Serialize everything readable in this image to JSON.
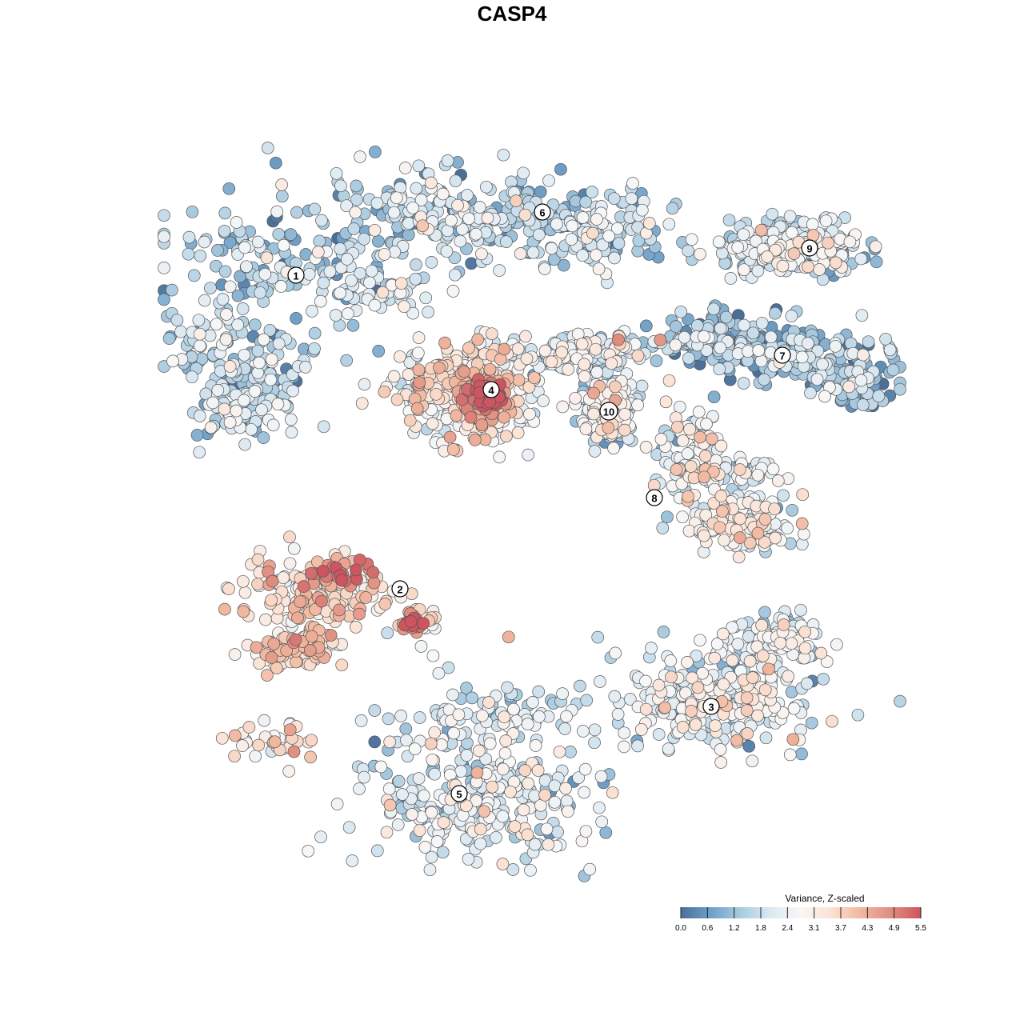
{
  "chart_data": {
    "type": "scatter",
    "title": "CASP4",
    "xlabel": "",
    "ylabel": "",
    "grid": false,
    "colorbar": {
      "title": "Variance, Z-scaled",
      "min": 0.0,
      "max": 5.5,
      "ticks": [
        "0.0",
        "0.6",
        "1.2",
        "1.8",
        "2.4",
        "3.1",
        "3.7",
        "4.3",
        "4.9",
        "5.5"
      ],
      "colors": [
        "#4a6f99",
        "#6f9fc8",
        "#a9cbe0",
        "#dce9f2",
        "#f7f7f7",
        "#fbe2d4",
        "#f1b79f",
        "#e08e80",
        "#cc5560"
      ],
      "placement": "bottom-right"
    },
    "clusters": [
      {
        "id": "1",
        "label": "1",
        "mean_value": 1.6
      },
      {
        "id": "2",
        "label": "2",
        "mean_value": 3.4
      },
      {
        "id": "3",
        "label": "3",
        "mean_value": 2.3
      },
      {
        "id": "4",
        "label": "4",
        "mean_value": 3.0
      },
      {
        "id": "5",
        "label": "5",
        "mean_value": 2.1
      },
      {
        "id": "6",
        "label": "6",
        "mean_value": 1.8
      },
      {
        "id": "7",
        "label": "7",
        "mean_value": 1.3
      },
      {
        "id": "8",
        "label": "8",
        "mean_value": 2.4
      },
      {
        "id": "9",
        "label": "9",
        "mean_value": 1.9
      },
      {
        "id": "10",
        "label": "10",
        "mean_value": 2.2
      }
    ]
  }
}
